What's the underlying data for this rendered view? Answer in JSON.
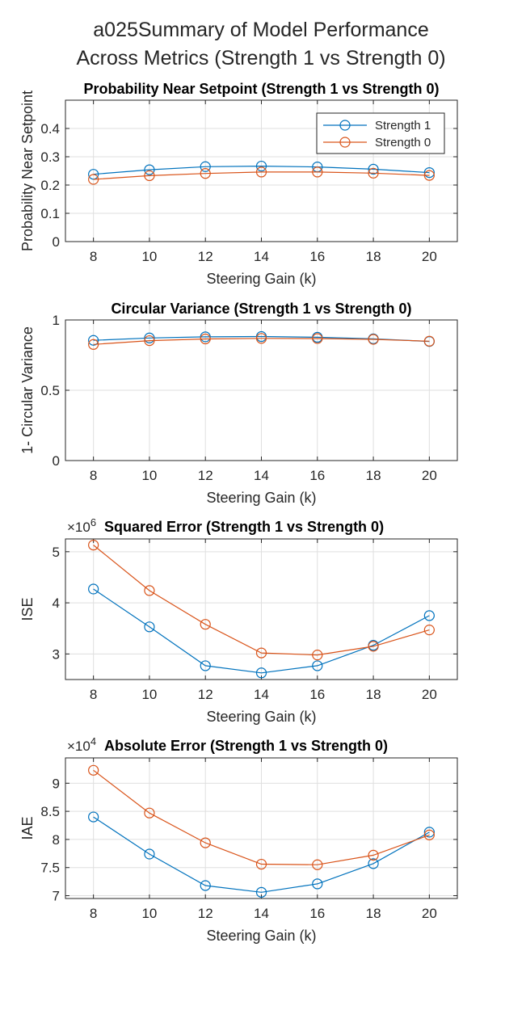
{
  "figure": {
    "suptitle_lines": [
      "a025Summary of Model Performance",
      "Across Metrics (Strength 1 vs Strength 0)"
    ]
  },
  "colors": {
    "strength1": "#0072BD",
    "strength0": "#D95319",
    "axis": "#262626",
    "grid": "#DFDFDF"
  },
  "chart_data": [
    {
      "type": "line",
      "title": "Probability Near Setpoint (Strength 1 vs Strength 0)",
      "xlabel": "Steering Gain (k)",
      "ylabel": "Probability Near Setpoint",
      "x": [
        8,
        10,
        12,
        14,
        16,
        18,
        20
      ],
      "xticks": [
        "8",
        "10",
        "12",
        "14",
        "16",
        "18",
        "20"
      ],
      "xlim": [
        7,
        21
      ],
      "ylim": [
        0,
        0.5
      ],
      "yticks": [
        0,
        0.1,
        0.2,
        0.3,
        0.4
      ],
      "ytick_labels": [
        "0",
        "0.1",
        "0.2",
        "0.3",
        "0.4"
      ],
      "grid": true,
      "legend": {
        "location": "top-right",
        "entries": [
          "Strength 1",
          "Strength 0"
        ]
      },
      "series": [
        {
          "name": "Strength 1",
          "values": [
            0.238,
            0.254,
            0.265,
            0.267,
            0.264,
            0.256,
            0.244
          ]
        },
        {
          "name": "Strength 0",
          "values": [
            0.22,
            0.233,
            0.241,
            0.246,
            0.246,
            0.242,
            0.234
          ]
        }
      ]
    },
    {
      "type": "line",
      "title": "Circular Variance (Strength 1 vs Strength 0)",
      "xlabel": "Steering Gain (k)",
      "ylabel": "1- Circular Variance",
      "x": [
        8,
        10,
        12,
        14,
        16,
        18,
        20
      ],
      "xticks": [
        "8",
        "10",
        "12",
        "14",
        "16",
        "18",
        "20"
      ],
      "xlim": [
        7,
        21
      ],
      "ylim": [
        0,
        1
      ],
      "yticks": [
        0,
        0.5,
        1
      ],
      "ytick_labels": [
        "0",
        "0.5",
        "1"
      ],
      "grid": true,
      "series": [
        {
          "name": "Strength 1",
          "values": [
            0.855,
            0.872,
            0.88,
            0.882,
            0.877,
            0.866,
            0.847
          ]
        },
        {
          "name": "Strength 0",
          "values": [
            0.826,
            0.853,
            0.865,
            0.869,
            0.868,
            0.862,
            0.849
          ]
        }
      ]
    },
    {
      "type": "line",
      "title": "Squared Error (Strength 1 vs Strength 0)",
      "exponent": "×10",
      "exponent_power": "6",
      "xlabel": "Steering Gain (k)",
      "ylabel": "ISE",
      "x": [
        8,
        10,
        12,
        14,
        16,
        18,
        20
      ],
      "xticks": [
        "8",
        "10",
        "12",
        "14",
        "16",
        "18",
        "20"
      ],
      "xlim": [
        7,
        21
      ],
      "ylim": [
        2.5,
        5.25
      ],
      "yticks": [
        3,
        4,
        5
      ],
      "ytick_labels": [
        "3",
        "4",
        "5"
      ],
      "grid": true,
      "series": [
        {
          "name": "Strength 1",
          "values": [
            4.27,
            3.53,
            2.77,
            2.63,
            2.77,
            3.17,
            3.75
          ]
        },
        {
          "name": "Strength 0",
          "values": [
            5.13,
            4.24,
            3.58,
            3.02,
            2.98,
            3.15,
            3.47
          ]
        }
      ]
    },
    {
      "type": "line",
      "title": "Absolute Error (Strength 1 vs Strength 0)",
      "exponent": "×10",
      "exponent_power": "4",
      "xlabel": "Steering Gain (k)",
      "ylabel": "IAE",
      "x": [
        8,
        10,
        12,
        14,
        16,
        18,
        20
      ],
      "xticks": [
        "8",
        "10",
        "12",
        "14",
        "16",
        "18",
        "20"
      ],
      "xlim": [
        7,
        21
      ],
      "ylim": [
        6.95,
        9.45
      ],
      "yticks": [
        7,
        7.5,
        8,
        8.5,
        9
      ],
      "ytick_labels": [
        "7",
        "7.5",
        "8",
        "8.5",
        "9"
      ],
      "grid": true,
      "series": [
        {
          "name": "Strength 1",
          "values": [
            8.4,
            7.74,
            7.18,
            7.06,
            7.21,
            7.57,
            8.13
          ]
        },
        {
          "name": "Strength 0",
          "values": [
            9.23,
            8.47,
            7.94,
            7.56,
            7.55,
            7.72,
            8.08
          ]
        }
      ]
    }
  ]
}
